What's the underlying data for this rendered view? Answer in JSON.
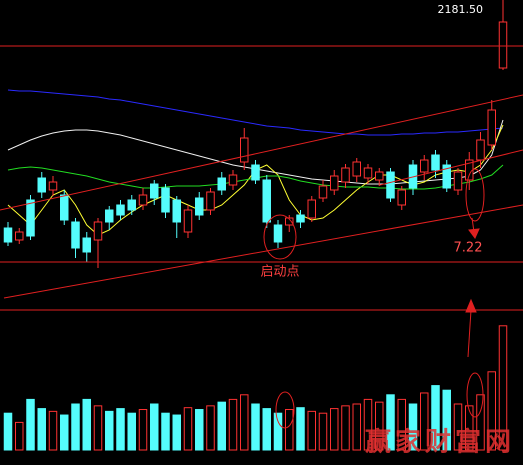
{
  "chart_data": {
    "type": "candlestick",
    "up_color": "#ff3232",
    "down_color": "#54fcfc",
    "ylim": [
      0,
      300
    ],
    "volume_ylim": [
      0,
      150
    ],
    "open": [
      72,
      60,
      100,
      122,
      110,
      105,
      78,
      62,
      60,
      90,
      95,
      100,
      95,
      116,
      112,
      100,
      68,
      102,
      90,
      122,
      115,
      138,
      135,
      120,
      75,
      75,
      85,
      82,
      102,
      110,
      118,
      124,
      122,
      120,
      128,
      95,
      135,
      128,
      145,
      135,
      110,
      120,
      140,
      155,
      232
    ],
    "high": [
      78,
      72,
      105,
      128,
      124,
      110,
      82,
      68,
      82,
      94,
      100,
      105,
      112,
      120,
      116,
      104,
      95,
      108,
      112,
      128,
      130,
      172,
      140,
      125,
      80,
      85,
      90,
      104,
      120,
      130,
      136,
      142,
      136,
      132,
      132,
      114,
      140,
      145,
      150,
      140,
      132,
      148,
      168,
      200,
      300
    ],
    "low": [
      54,
      56,
      60,
      102,
      104,
      75,
      42,
      38,
      32,
      70,
      80,
      85,
      90,
      95,
      82,
      62,
      62,
      80,
      85,
      105,
      110,
      130,
      116,
      72,
      52,
      68,
      72,
      78,
      98,
      105,
      112,
      118,
      116,
      114,
      98,
      90,
      105,
      120,
      122,
      108,
      105,
      110,
      132,
      150,
      230
    ],
    "close": [
      58,
      68,
      64,
      108,
      118,
      80,
      52,
      48,
      78,
      78,
      85,
      90,
      105,
      102,
      88,
      78,
      90,
      85,
      108,
      110,
      125,
      162,
      120,
      78,
      58,
      82,
      78,
      100,
      114,
      124,
      132,
      138,
      132,
      128,
      102,
      110,
      112,
      140,
      130,
      112,
      128,
      140,
      160,
      190,
      278
    ],
    "volume": [
      40,
      30,
      55,
      45,
      42,
      38,
      50,
      55,
      48,
      42,
      45,
      40,
      44,
      50,
      40,
      38,
      46,
      44,
      48,
      52,
      55,
      60,
      50,
      45,
      40,
      44,
      46,
      42,
      40,
      45,
      48,
      50,
      55,
      52,
      60,
      55,
      50,
      62,
      70,
      65,
      50,
      48,
      60,
      85,
      135
    ],
    "series": [
      {
        "color": "#2a2aff",
        "values": [
          210,
          209,
          209,
          208,
          207,
          206,
          205,
          204,
          203,
          201,
          200,
          198,
          196,
          194,
          192,
          190,
          188,
          186,
          184,
          182,
          180,
          178,
          176,
          174,
          173,
          172,
          170,
          169,
          168,
          167,
          166,
          166,
          165,
          165,
          165,
          166,
          166,
          167,
          167,
          168,
          168,
          169,
          170,
          171,
          172
        ]
      },
      {
        "color": "#f0f0f0",
        "values": [
          150,
          155,
          160,
          164,
          167,
          169,
          170,
          170,
          169,
          167,
          165,
          162,
          159,
          156,
          153,
          150,
          147,
          144,
          141,
          138,
          135,
          133,
          131,
          129,
          127,
          125,
          123,
          121,
          120,
          119,
          118,
          117,
          116,
          116,
          116,
          117,
          118,
          119,
          120,
          121,
          122,
          124,
          130,
          145,
          180
        ]
      },
      {
        "color": "#ffff33",
        "values": [
          95,
          85,
          75,
          90,
          105,
          110,
          95,
          75,
          65,
          70,
          80,
          88,
          95,
          100,
          105,
          100,
          95,
          90,
          90,
          95,
          105,
          115,
          130,
          135,
          125,
          100,
          85,
          80,
          82,
          90,
          100,
          110,
          118,
          125,
          125,
          120,
          115,
          118,
          125,
          128,
          130,
          128,
          135,
          150,
          175
        ]
      },
      {
        "color": "#22dd22",
        "values": [
          130,
          132,
          133,
          132,
          130,
          128,
          126,
          124,
          121,
          118,
          116,
          114,
          112,
          112,
          113,
          114,
          114,
          114,
          115,
          116,
          118,
          120,
          122,
          124,
          124,
          122,
          119,
          117,
          115,
          114,
          113,
          113,
          113,
          112,
          112,
          111,
          111,
          111,
          112,
          114,
          116,
          118,
          121,
          125,
          135
        ]
      }
    ],
    "annotations": {
      "price_label": "2181.50",
      "start_point": "启动点",
      "date_label": "7.22",
      "watermark": "赢家财富网"
    }
  }
}
